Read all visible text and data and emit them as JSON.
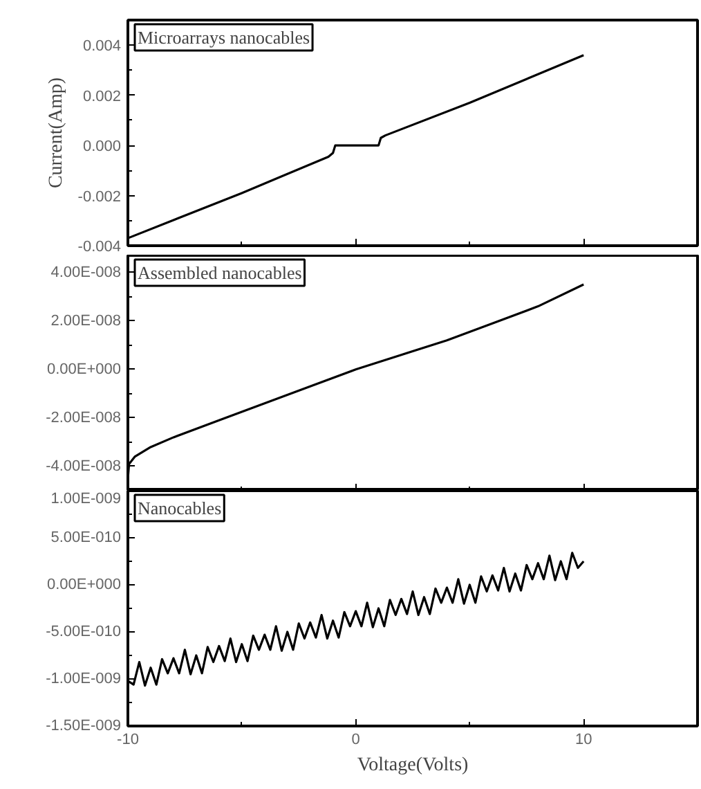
{
  "chart_data": [
    {
      "type": "line",
      "title": "Microarrays nanocables",
      "ylabel": "Current(Amp)",
      "xlim": [
        -10,
        15
      ],
      "xticks": [
        -10,
        0,
        10
      ],
      "ylim": [
        -0.004,
        0.005
      ],
      "yticks": [
        {
          "value": -0.004,
          "label": "-0.004"
        },
        {
          "value": -0.002,
          "label": "-0.002"
        },
        {
          "value": 0,
          "label": "0.000"
        },
        {
          "value": 0.002,
          "label": "0.002"
        },
        {
          "value": 0.004,
          "label": "0.004"
        }
      ],
      "tick_labels": "y",
      "grid": false,
      "series": [
        {
          "color": "#000000",
          "x": [
            -10,
            -5,
            -1.2,
            -1.0,
            -0.9,
            1.0,
            1.1,
            1.3,
            5,
            10
          ],
          "values": [
            -0.0037,
            -0.0019,
            -0.00045,
            -0.0003,
            0.0,
            0.0,
            0.0003,
            0.0004,
            0.0017,
            0.0036
          ]
        }
      ]
    },
    {
      "type": "line",
      "title": "Assembled nanocables",
      "xlim": [
        -10,
        15
      ],
      "xticks": [
        -10,
        0,
        10
      ],
      "ylim": [
        -5e-08,
        4.7e-08
      ],
      "yticks": [
        {
          "value": -4e-08,
          "label": "-4.00E-008"
        },
        {
          "value": -2e-08,
          "label": "-2.00E-008"
        },
        {
          "value": 0,
          "label": "0.00E+000"
        },
        {
          "value": 2e-08,
          "label": "2.00E-008"
        },
        {
          "value": 4e-08,
          "label": "4.00E-008"
        }
      ],
      "tick_labels": "y",
      "grid": false,
      "series": [
        {
          "color": "#000000",
          "x": [
            -10,
            -9.95,
            -9.7,
            -9,
            -8,
            -6,
            -4,
            -2,
            0,
            2,
            4,
            6,
            8,
            10
          ],
          "values": [
            -4.5e-08,
            -3.9e-08,
            -3.6e-08,
            -3.2e-08,
            -2.8e-08,
            -2.1e-08,
            -1.4e-08,
            -7e-09,
            0,
            6e-09,
            1.2e-08,
            1.9e-08,
            2.6e-08,
            3.5e-08
          ]
        }
      ]
    },
    {
      "type": "line",
      "title": "Nanocables",
      "xlabel": "Voltage(Volts)",
      "xlim": [
        -10,
        15
      ],
      "xticks": [
        -10,
        0,
        10
      ],
      "ylim": [
        -1.5e-09,
        1e-09
      ],
      "yticks": [
        {
          "value": -1.5e-09,
          "label": "-1.50E-009"
        },
        {
          "value": -1e-09,
          "label": "-1.00E-009"
        },
        {
          "value": -5e-10,
          "label": "-5.00E-010"
        },
        {
          "value": 0,
          "label": "0.00E+000"
        },
        {
          "value": 5e-10,
          "label": "5.00E-010"
        },
        {
          "value": 1e-09,
          "label": "1.00E-009"
        }
      ],
      "grid": false,
      "series": [
        {
          "color": "#000000",
          "x": [
            -10,
            -9.75,
            -9.5,
            -9.25,
            -9,
            -8.75,
            -8.5,
            -8.25,
            -8,
            -7.75,
            -7.5,
            -7.25,
            -7,
            -6.75,
            -6.5,
            -6.25,
            -6,
            -5.75,
            -5.5,
            -5.25,
            -5,
            -4.75,
            -4.5,
            -4.25,
            -4,
            -3.75,
            -3.5,
            -3.25,
            -3,
            -2.75,
            -2.5,
            -2.25,
            -2,
            -1.75,
            -1.5,
            -1.25,
            -1,
            -0.75,
            -0.5,
            -0.25,
            0,
            0.25,
            0.5,
            0.75,
            1,
            1.25,
            1.5,
            1.75,
            2,
            2.25,
            2.5,
            2.75,
            3,
            3.25,
            3.5,
            3.75,
            4,
            4.25,
            4.5,
            4.75,
            5,
            5.25,
            5.5,
            5.75,
            6,
            6.25,
            6.5,
            6.75,
            7,
            7.25,
            7.5,
            7.75,
            8,
            8.25,
            8.5,
            8.75,
            9,
            9.25,
            9.5,
            9.75,
            10
          ],
          "values": [
            -1.02e-09,
            -1.06e-09,
            -8.2e-10,
            -1.07e-09,
            -8.8e-10,
            -1.06e-09,
            -7.9e-10,
            -9.4e-10,
            -7.8e-10,
            -9.4e-10,
            -6.9e-10,
            -9.5e-10,
            -7.5e-10,
            -9.4e-10,
            -6.6e-10,
            -8.2e-10,
            -6.5e-10,
            -8.1e-10,
            -5.7e-10,
            -8.2e-10,
            -6.3e-10,
            -8.1e-10,
            -5.4e-10,
            -6.9e-10,
            -5.3e-10,
            -6.9e-10,
            -4.4e-10,
            -7e-10,
            -5e-10,
            -6.9e-10,
            -4.1e-10,
            -5.7e-10,
            -4e-10,
            -5.6e-10,
            -3.2e-10,
            -5.7e-10,
            -3.8e-10,
            -5.6e-10,
            -2.9e-10,
            -4.4e-10,
            -2.8e-10,
            -4.4e-10,
            -1.9e-10,
            -4.5e-10,
            -2.5e-10,
            -4.4e-10,
            -1.6e-10,
            -3.2e-10,
            -1.5e-10,
            -3.1e-10,
            -7e-11,
            -3.2e-10,
            -1.3e-10,
            -3.1e-10,
            -4e-11,
            -1.9e-10,
            -3e-11,
            -1.9e-10,
            6e-11,
            -2e-10,
            0.0,
            -1.9e-10,
            9e-11,
            -7e-11,
            1e-10,
            -6e-11,
            1.8e-10,
            -7e-11,
            1.2e-10,
            -6e-11,
            2.1e-10,
            6e-11,
            2.3e-10,
            6e-11,
            3.1e-10,
            5e-11,
            2.5e-10,
            6e-11,
            3.4e-10,
            1.8e-10,
            2.5e-10
          ]
        }
      ]
    }
  ]
}
